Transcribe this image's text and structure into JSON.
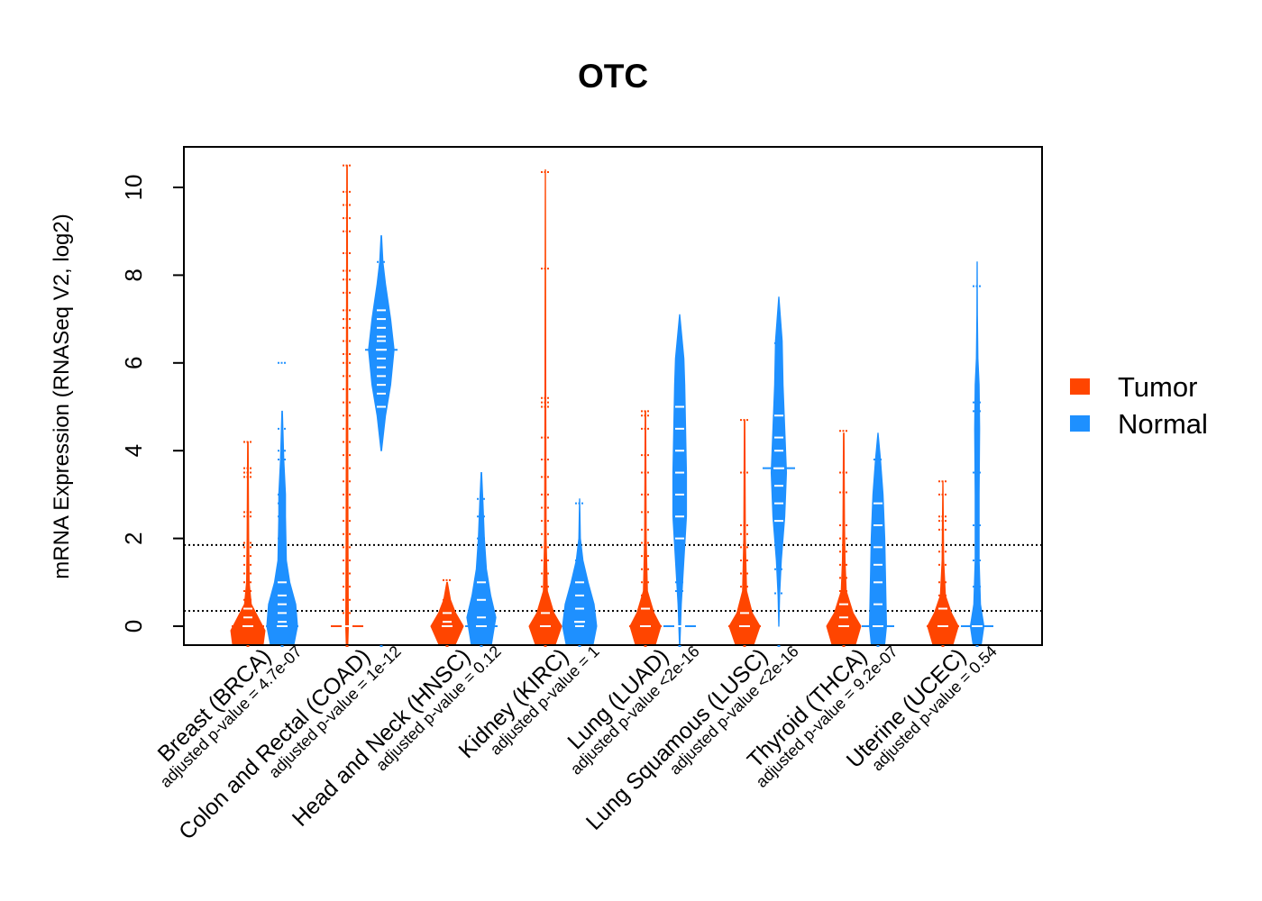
{
  "chart_data": {
    "type": "beanplot",
    "title": "OTC",
    "xlabel": "",
    "ylabel": "mRNA Expression (RNASeq V2, log2)",
    "ylim": [
      -0.4,
      10.9
    ],
    "yticks": [
      0,
      2,
      4,
      6,
      8,
      10
    ],
    "reference_lines": [
      1.85,
      0.35
    ],
    "legend": {
      "position": "right",
      "entries": [
        {
          "label": "Tumor",
          "color": "#FF4500"
        },
        {
          "label": "Normal",
          "color": "#1E90FF"
        }
      ]
    },
    "groups": [
      {
        "name": "Breast (BRCA)",
        "pvalue": "adjusted p-value = 4.7e-07",
        "tumor": {
          "median": 0,
          "density": [
            [
              -0.4,
              0.9
            ],
            [
              -0.1,
              1
            ],
            [
              0.2,
              0.6
            ],
            [
              0.5,
              0.2
            ],
            [
              1,
              0.08
            ],
            [
              2,
              0.05
            ],
            [
              4.2,
              0.02
            ]
          ],
          "points": [
            4.2,
            3.6,
            3.5,
            3.4,
            2.6,
            2.5,
            1.9,
            1.8,
            1.6,
            1.4,
            1.2,
            1.0,
            0.8,
            0.6,
            0.4,
            0.2,
            0
          ]
        },
        "normal": {
          "median": 0,
          "density": [
            [
              -0.4,
              0.7
            ],
            [
              0,
              0.9
            ],
            [
              0.5,
              0.8
            ],
            [
              1,
              0.45
            ],
            [
              1.5,
              0.25
            ],
            [
              2.5,
              0.2
            ],
            [
              3,
              0.2
            ],
            [
              3.8,
              0.1
            ],
            [
              4.9,
              0.02
            ]
          ],
          "points": [
            6.0,
            4.5,
            4.0,
            3.8,
            3.0,
            2.8,
            2.5,
            2.0,
            1.5,
            1.0,
            0.7,
            0.5,
            0.3,
            0.1,
            0
          ]
        }
      },
      {
        "name": "Colon and Rectal (COAD)",
        "pvalue": "adjusted p-value = 1e-12",
        "tumor": {
          "median": 0,
          "density": [
            [
              -0.4,
              0.05
            ],
            [
              0,
              0.08
            ],
            [
              2,
              0.06
            ],
            [
              6,
              0.04
            ],
            [
              10.5,
              0.02
            ]
          ],
          "points": [
            10.5,
            9.9,
            9.6,
            9.3,
            9.0,
            8.5,
            8.1,
            7.9,
            7.6,
            7.2,
            7.0,
            6.8,
            6.5,
            6.2,
            6.0,
            5.7,
            5.4,
            5.1,
            4.8,
            4.5,
            4.2,
            3.9,
            3.6,
            3.3,
            3.0,
            2.7,
            2.4,
            2.1,
            1.8,
            1.5,
            1.2,
            0.9,
            0.6,
            0.3,
            0
          ]
        },
        "normal": {
          "median": 6.3,
          "density": [
            [
              4.0,
              0.02
            ],
            [
              4.8,
              0.25
            ],
            [
              5.5,
              0.55
            ],
            [
              6.3,
              0.75
            ],
            [
              7.0,
              0.55
            ],
            [
              7.8,
              0.25
            ],
            [
              8.3,
              0.1
            ],
            [
              8.9,
              0.02
            ]
          ],
          "points": [
            8.3,
            7.2,
            7.0,
            6.8,
            6.6,
            6.5,
            6.3,
            6.1,
            5.9,
            5.7,
            5.5,
            5.3,
            5.0
          ]
        }
      },
      {
        "name": "Head and Neck (HNSC)",
        "pvalue": "adjusted p-value = 0.12",
        "tumor": {
          "median": 0,
          "density": [
            [
              -0.4,
              0.5
            ],
            [
              0,
              0.95
            ],
            [
              0.3,
              0.5
            ],
            [
              0.6,
              0.2
            ],
            [
              1.0,
              0.02
            ]
          ],
          "points": [
            1.05,
            0.6,
            0.3,
            0.1,
            0
          ]
        },
        "normal": {
          "median": 0,
          "density": [
            [
              -0.4,
              0.6
            ],
            [
              0.2,
              0.85
            ],
            [
              0.7,
              0.55
            ],
            [
              1.3,
              0.3
            ],
            [
              2,
              0.18
            ],
            [
              2.8,
              0.1
            ],
            [
              3.5,
              0.02
            ]
          ],
          "points": [
            2.9,
            2.5,
            2.0,
            1.5,
            1.0,
            0.6,
            0.2,
            0
          ]
        }
      },
      {
        "name": "Kidney (KIRC)",
        "pvalue": "adjusted p-value = 1",
        "tumor": {
          "median": 0,
          "density": [
            [
              -0.4,
              0.6
            ],
            [
              0,
              0.95
            ],
            [
              0.3,
              0.5
            ],
            [
              0.8,
              0.12
            ],
            [
              2,
              0.05
            ],
            [
              5,
              0.03
            ],
            [
              10.4,
              0.01
            ]
          ],
          "points": [
            10.35,
            8.15,
            5.2,
            5.1,
            5.0,
            4.3,
            3.8,
            3.4,
            3.0,
            2.7,
            2.4,
            2.1,
            1.8,
            1.5,
            1.2,
            0.9,
            0.6,
            0.3,
            0
          ]
        },
        "normal": {
          "median": 0.1,
          "density": [
            [
              -0.4,
              0.8
            ],
            [
              0,
              1
            ],
            [
              0.5,
              0.85
            ],
            [
              1,
              0.5
            ],
            [
              1.5,
              0.2
            ],
            [
              2,
              0.05
            ],
            [
              2.9,
              0.01
            ]
          ],
          "points": [
            2.8,
            1.5,
            1.0,
            0.7,
            0.4,
            0.1,
            0
          ]
        }
      },
      {
        "name": "Lung (LUAD)",
        "pvalue": "adjusted p-value <2e-16",
        "tumor": {
          "median": 0,
          "density": [
            [
              -0.4,
              0.6
            ],
            [
              0,
              0.9
            ],
            [
              0.3,
              0.5
            ],
            [
              0.8,
              0.12
            ],
            [
              2,
              0.05
            ],
            [
              4.9,
              0.02
            ]
          ],
          "points": [
            4.9,
            4.8,
            4.5,
            3.9,
            3.5,
            3.0,
            2.6,
            2.2,
            1.9,
            1.6,
            1.3,
            1.0,
            0.7,
            0.4,
            0
          ]
        },
        "normal": {
          "median": 0,
          "density": [
            [
              -0.4,
              0.02
            ],
            [
              0.5,
              0.1
            ],
            [
              1.5,
              0.25
            ],
            [
              2.5,
              0.4
            ],
            [
              3.5,
              0.4
            ],
            [
              4.5,
              0.35
            ],
            [
              5.5,
              0.3
            ],
            [
              6.1,
              0.25
            ],
            [
              7.1,
              0.01
            ]
          ],
          "points": [
            6.1,
            5.5,
            5.0,
            4.5,
            4.0,
            3.5,
            3.0,
            2.5,
            2.0,
            1.5,
            1.0,
            0.8,
            0
          ]
        }
      },
      {
        "name": "Lung Squamous (LUSC)",
        "pvalue": "adjusted p-value <2e-16",
        "tumor": {
          "median": 0,
          "density": [
            [
              -0.4,
              0.55
            ],
            [
              0,
              0.9
            ],
            [
              0.3,
              0.45
            ],
            [
              0.8,
              0.12
            ],
            [
              2,
              0.05
            ],
            [
              4.7,
              0.02
            ]
          ],
          "points": [
            4.7,
            3.5,
            2.3,
            2.1,
            1.8,
            1.5,
            1.2,
            0.9,
            0.6,
            0.3,
            0
          ]
        },
        "normal": {
          "median": 3.6,
          "density": [
            [
              0,
              0.01
            ],
            [
              0.7,
              0.05
            ],
            [
              1.5,
              0.15
            ],
            [
              2.5,
              0.35
            ],
            [
              3.5,
              0.45
            ],
            [
              4.5,
              0.35
            ],
            [
              5.5,
              0.25
            ],
            [
              6.5,
              0.2
            ],
            [
              7.5,
              0.01
            ]
          ],
          "points": [
            6.45,
            5.5,
            4.8,
            4.3,
            4.0,
            3.6,
            3.2,
            2.8,
            2.4,
            2.0,
            1.3,
            0.75
          ]
        }
      },
      {
        "name": "Thyroid (THCA)",
        "pvalue": "adjusted p-value = 9.2e-07",
        "tumor": {
          "median": 0,
          "density": [
            [
              -0.4,
              0.7
            ],
            [
              0,
              1
            ],
            [
              0.3,
              0.55
            ],
            [
              0.8,
              0.15
            ],
            [
              1.5,
              0.08
            ],
            [
              2.3,
              0.05
            ],
            [
              4.4,
              0.02
            ]
          ],
          "points": [
            4.45,
            3.5,
            3.05,
            2.3,
            2.0,
            1.7,
            1.4,
            1.1,
            0.8,
            0.5,
            0.2,
            0
          ]
        },
        "normal": {
          "median": 0,
          "density": [
            [
              -0.4,
              0.4
            ],
            [
              0,
              0.5
            ],
            [
              1,
              0.45
            ],
            [
              2,
              0.4
            ],
            [
              3,
              0.3
            ],
            [
              3.8,
              0.15
            ],
            [
              4.4,
              0.01
            ]
          ],
          "points": [
            3.8,
            3.2,
            2.8,
            2.3,
            1.8,
            1.4,
            1.0,
            0.5,
            0
          ]
        }
      },
      {
        "name": "Uterine (UCEC)",
        "pvalue": "adjusted p-value = 0.54",
        "tumor": {
          "median": 0,
          "density": [
            [
              -0.4,
              0.6
            ],
            [
              0,
              0.9
            ],
            [
              0.3,
              0.5
            ],
            [
              0.7,
              0.15
            ],
            [
              1.5,
              0.05
            ],
            [
              3.3,
              0.01
            ]
          ],
          "points": [
            3.3,
            3.0,
            2.5,
            2.4,
            2.2,
            1.7,
            1.4,
            1.0,
            0.7,
            0.4,
            0
          ]
        },
        "normal": {
          "median": 0,
          "density": [
            [
              -0.4,
              0.25
            ],
            [
              0,
              0.4
            ],
            [
              0.5,
              0.2
            ],
            [
              1.5,
              0.12
            ],
            [
              3,
              0.12
            ],
            [
              4.5,
              0.15
            ],
            [
              5.5,
              0.12
            ],
            [
              6.1,
              0.05
            ],
            [
              7.1,
              0.02
            ],
            [
              8.3,
              0.01
            ]
          ],
          "points": [
            7.75,
            5.1,
            4.9,
            3.5,
            2.3,
            1.5,
            0.9,
            0.3,
            0
          ]
        }
      }
    ]
  }
}
